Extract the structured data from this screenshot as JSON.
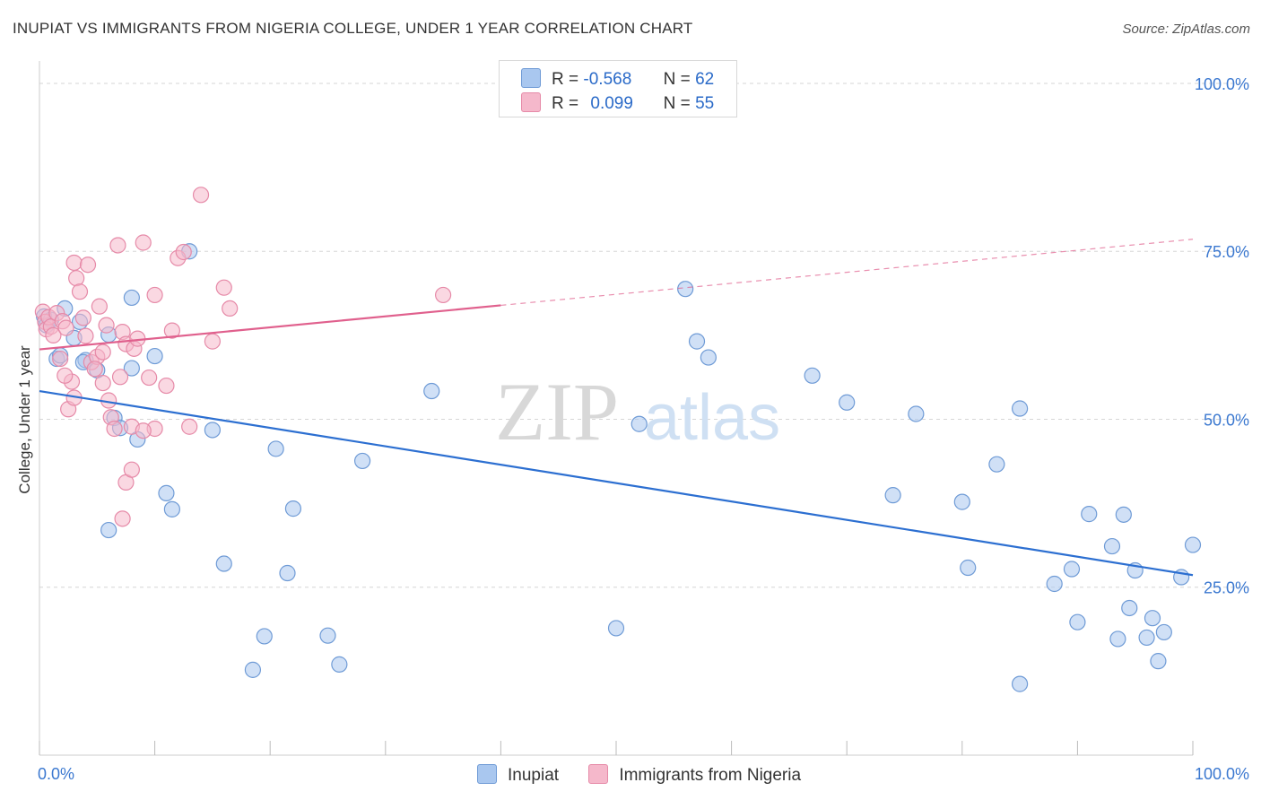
{
  "header": {
    "title": "INUPIAT VS IMMIGRANTS FROM NIGERIA COLLEGE, UNDER 1 YEAR CORRELATION CHART",
    "source": "Source: ZipAtlas.com"
  },
  "watermark": {
    "zip": "ZIP",
    "atlas": "atlas"
  },
  "legend": {
    "r_label": "R =",
    "n_label": "N =",
    "entries": [
      {
        "r": "-0.568",
        "n": "62"
      },
      {
        "r": "0.099",
        "n": "55"
      }
    ]
  },
  "colors": {
    "series1_fill": "#a9c7ef",
    "series1_stroke": "#6f9bd6",
    "series1_line": "#2c6fd1",
    "series2_fill": "#f5b8cb",
    "series2_stroke": "#e68aa8",
    "series2_line": "#e0608d",
    "axis_label": "#3b78d0",
    "grid": "#d6d6d6"
  },
  "chart_data": {
    "type": "scatter",
    "title": "INUPIAT VS IMMIGRANTS FROM NIGERIA COLLEGE, UNDER 1 YEAR CORRELATION CHART",
    "xlabel": "",
    "ylabel": "College, Under 1 year",
    "xlim": [
      0,
      100
    ],
    "ylim": [
      0,
      102
    ],
    "x_tick_labels": [
      "0.0%",
      "100.0%"
    ],
    "y_ticks": [
      25,
      50,
      75,
      100
    ],
    "y_tick_labels": [
      "25.0%",
      "50.0%",
      "75.0%",
      "100.0%"
    ],
    "grid": true,
    "legend_position": "top-center",
    "series": [
      {
        "name": "Inupiat",
        "r": -0.568,
        "n": 62,
        "trend": {
          "x0": 0,
          "y0": 54.2,
          "x1": 100,
          "y1": 26.8,
          "dashed_from": null
        },
        "points": [
          [
            0.4,
            65.3
          ],
          [
            0.6,
            64.0
          ],
          [
            1.0,
            64.8
          ],
          [
            1.5,
            59.0
          ],
          [
            2.2,
            66.5
          ],
          [
            3.0,
            62.1
          ],
          [
            3.5,
            64.5
          ],
          [
            4.0,
            58.8
          ],
          [
            5.0,
            57.3
          ],
          [
            6.0,
            62.6
          ],
          [
            6.5,
            50.2
          ],
          [
            7.0,
            48.7
          ],
          [
            8.5,
            47.0
          ],
          [
            8.0,
            57.6
          ],
          [
            10.0,
            59.4
          ],
          [
            8.0,
            68.1
          ],
          [
            11.0,
            39.0
          ],
          [
            11.5,
            36.6
          ],
          [
            13.0,
            75.0
          ],
          [
            15.0,
            48.4
          ],
          [
            6.0,
            33.5
          ],
          [
            16.0,
            28.5
          ],
          [
            18.5,
            12.7
          ],
          [
            19.5,
            17.7
          ],
          [
            20.5,
            45.6
          ],
          [
            21.5,
            27.1
          ],
          [
            22.0,
            36.7
          ],
          [
            25.0,
            17.8
          ],
          [
            26.0,
            13.5
          ],
          [
            28.0,
            43.8
          ],
          [
            34.0,
            54.2
          ],
          [
            50.0,
            18.9
          ],
          [
            52.0,
            49.3
          ],
          [
            56.0,
            69.4
          ],
          [
            57.0,
            61.6
          ],
          [
            58.0,
            59.2
          ],
          [
            67.0,
            56.5
          ],
          [
            70.0,
            52.5
          ],
          [
            74.0,
            38.7
          ],
          [
            76.0,
            50.8
          ],
          [
            80.0,
            37.7
          ],
          [
            80.5,
            27.9
          ],
          [
            83.0,
            43.3
          ],
          [
            85.0,
            51.6
          ],
          [
            85.0,
            10.6
          ],
          [
            88.0,
            25.5
          ],
          [
            89.5,
            27.7
          ],
          [
            90.0,
            19.8
          ],
          [
            91.0,
            35.9
          ],
          [
            93.0,
            31.1
          ],
          [
            93.5,
            17.3
          ],
          [
            94.0,
            35.8
          ],
          [
            94.5,
            21.9
          ],
          [
            95.0,
            27.5
          ],
          [
            96.0,
            17.5
          ],
          [
            96.5,
            20.4
          ],
          [
            97.0,
            14.0
          ],
          [
            97.5,
            18.3
          ],
          [
            99.0,
            26.5
          ],
          [
            100.0,
            31.3
          ],
          [
            1.8,
            59.5
          ],
          [
            3.8,
            58.5
          ]
        ]
      },
      {
        "name": "Immigrants from Nigeria",
        "r": 0.099,
        "n": 55,
        "trend": {
          "x0": 0,
          "y0": 60.4,
          "x1": 100,
          "y1": 76.8,
          "dashed_from": 40
        },
        "points": [
          [
            0.3,
            66.0
          ],
          [
            0.5,
            64.5
          ],
          [
            0.6,
            63.4
          ],
          [
            0.8,
            65.2
          ],
          [
            1.0,
            63.8
          ],
          [
            1.2,
            62.5
          ],
          [
            1.5,
            65.8
          ],
          [
            1.8,
            59.0
          ],
          [
            2.0,
            64.6
          ],
          [
            2.3,
            63.6
          ],
          [
            2.5,
            51.5
          ],
          [
            2.8,
            55.6
          ],
          [
            3.0,
            53.2
          ],
          [
            3.0,
            73.3
          ],
          [
            3.2,
            71.0
          ],
          [
            3.5,
            69.0
          ],
          [
            3.8,
            65.1
          ],
          [
            4.0,
            62.4
          ],
          [
            4.2,
            73.0
          ],
          [
            4.5,
            58.5
          ],
          [
            5.0,
            59.3
          ],
          [
            5.2,
            66.8
          ],
          [
            5.5,
            60.0
          ],
          [
            5.5,
            55.4
          ],
          [
            6.0,
            52.8
          ],
          [
            6.2,
            50.3
          ],
          [
            6.5,
            48.6
          ],
          [
            7.0,
            56.3
          ],
          [
            7.2,
            63.0
          ],
          [
            7.5,
            61.2
          ],
          [
            7.5,
            40.6
          ],
          [
            7.2,
            35.2
          ],
          [
            8.0,
            48.9
          ],
          [
            8.0,
            42.5
          ],
          [
            8.2,
            60.5
          ],
          [
            8.5,
            62.0
          ],
          [
            9.0,
            76.3
          ],
          [
            9.5,
            56.2
          ],
          [
            10.0,
            48.6
          ],
          [
            11.0,
            55.0
          ],
          [
            11.5,
            63.2
          ],
          [
            12.0,
            74.0
          ],
          [
            12.5,
            74.9
          ],
          [
            13.0,
            48.9
          ],
          [
            14.0,
            83.4
          ],
          [
            15.0,
            61.6
          ],
          [
            16.0,
            69.6
          ],
          [
            16.5,
            66.5
          ],
          [
            10.0,
            68.5
          ],
          [
            9.0,
            48.3
          ],
          [
            4.8,
            57.5
          ],
          [
            5.8,
            64.0
          ],
          [
            6.8,
            75.9
          ],
          [
            35.0,
            68.5
          ],
          [
            2.2,
            56.5
          ]
        ]
      }
    ]
  }
}
